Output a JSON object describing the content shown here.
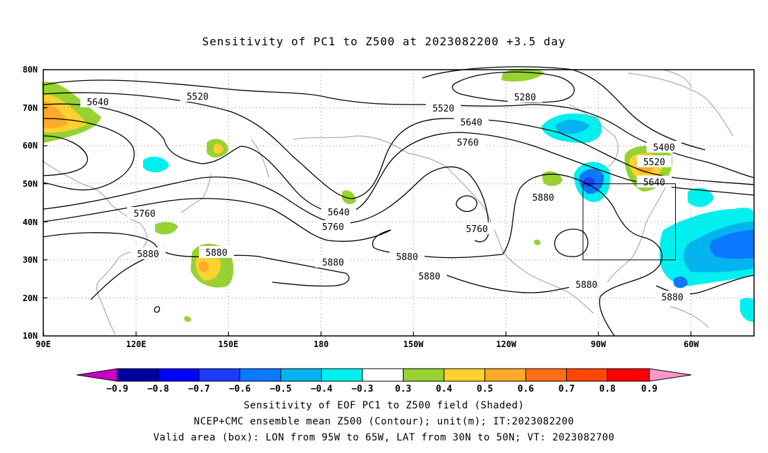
{
  "title": "Sensitivity of PC1 to Z500 at 2023082200 +3.5 day",
  "map": {
    "lon_labels": [
      "90E",
      "120E",
      "150E",
      "180",
      "150W",
      "120W",
      "90W",
      "60W"
    ],
    "lat_labels": [
      "80N",
      "70N",
      "60N",
      "50N",
      "40N",
      "30N",
      "20N",
      "10N"
    ],
    "contour_labels": [
      "5280",
      "5400",
      "5520",
      "5520",
      "5520",
      "5640",
      "5640",
      "5640",
      "5640",
      "5760",
      "5760",
      "5760",
      "5760",
      "5880",
      "5880",
      "5880",
      "5880",
      "5880",
      "5880",
      "5880",
      "5880"
    ]
  },
  "colorbar": {
    "colors": [
      "#c800c8",
      "#0000a0",
      "#0000ff",
      "#1e3cff",
      "#0a78ff",
      "#00b4f0",
      "#00f0f0",
      "#ffffff",
      "#96d232",
      "#ffd232",
      "#ffaa28",
      "#ff6e14",
      "#ff4600",
      "#ff0000",
      "#ff96c8"
    ],
    "labels": [
      "−0.9",
      "−0.8",
      "−0.7",
      "−0.6",
      "−0.5",
      "−0.4",
      "−0.3",
      "0.3",
      "0.4",
      "0.5",
      "0.6",
      "0.7",
      "0.8",
      "0.9"
    ]
  },
  "captions": {
    "line1": "Sensitivity of EOF PC1 to Z500 field (Shaded)",
    "line2": "NCEP+CMC ensemble mean Z500 (Contour); unit(m); IT:2023082200",
    "line3": "Valid area (box): LON from 95W to 65W, LAT from 30N to 50N; VT: 2023082700"
  }
}
